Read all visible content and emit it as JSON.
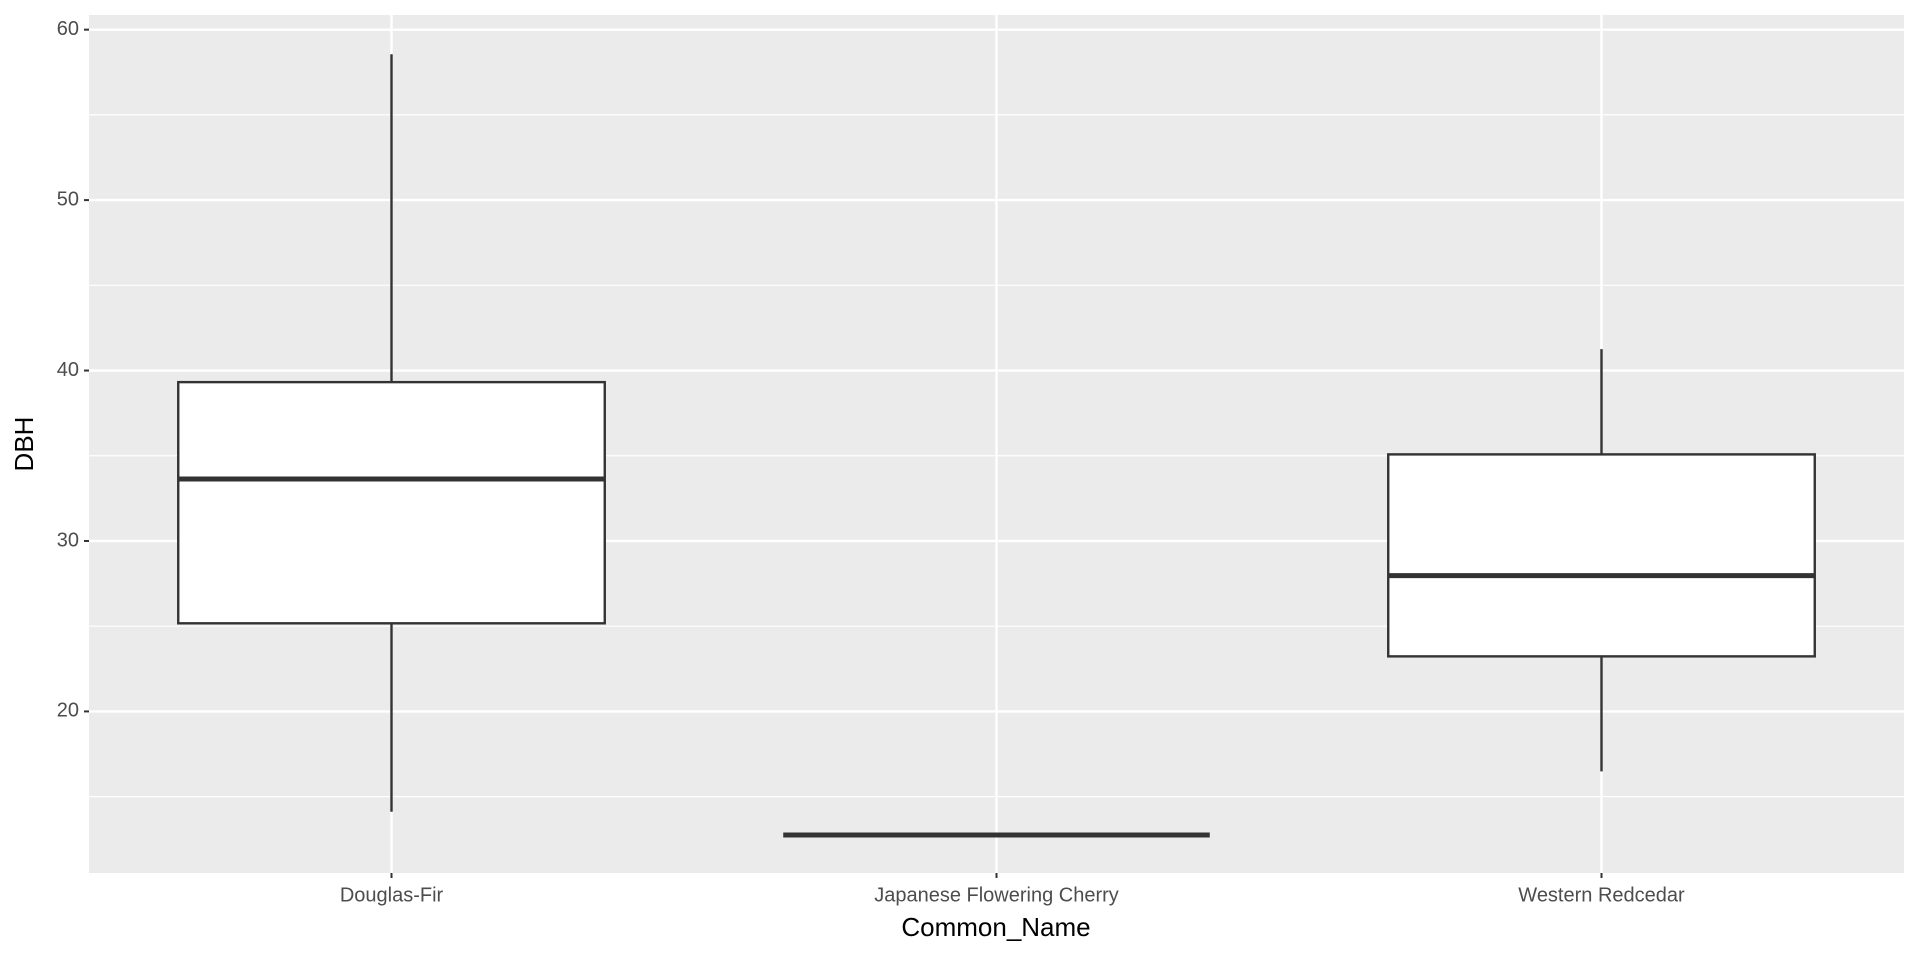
{
  "chart_data": {
    "type": "boxplot",
    "x_label": "Common_Name",
    "y_label": "DBH",
    "categories": [
      "Douglas-Fir",
      "Japanese Flowering Cherry",
      "Western Redcedar"
    ],
    "boxes": [
      {
        "min": 14.11,
        "q1": 25.17,
        "median": 33.64,
        "q3": 39.32,
        "max": 58.56
      },
      {
        "min": 12.75,
        "q1": 12.75,
        "median": 12.75,
        "q3": 12.75,
        "max": 12.75
      },
      {
        "min": 16.48,
        "q1": 23.23,
        "median": 27.97,
        "q3": 35.08,
        "max": 41.26
      }
    ],
    "box_fill": "#ffffff",
    "box_stroke": "#333333",
    "ylim": [
      10.52,
      60.86
    ],
    "yticks": [
      20,
      30,
      40,
      50,
      60
    ],
    "grid": true
  }
}
